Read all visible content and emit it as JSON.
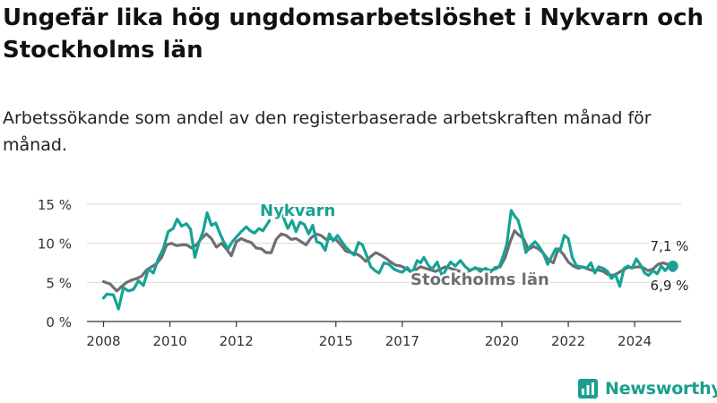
{
  "title": "Ungefär lika hög ungdomsarbetslöshet i Nykvarn och Stockholms län",
  "subtitle": "Arbetssökande som andel av den registerbaserade arbetskraften månad för månad.",
  "logo_text": "Newsworthy",
  "colors": {
    "nykvarn": "#16a394",
    "stockholm": "#6e6e73",
    "grid": "#d8d8d8",
    "axis": "#333333",
    "brand": "#1a9e8f"
  },
  "chart_data": {
    "type": "line",
    "x_unit": "year",
    "xlim": [
      2007.5,
      2025.4
    ],
    "ylim": [
      0,
      15
    ],
    "y_ticks": [
      {
        "value": 0,
        "label": "0 %"
      },
      {
        "value": 5,
        "label": "5 %"
      },
      {
        "value": 10,
        "label": "10 %"
      },
      {
        "value": 15,
        "label": "15 %"
      }
    ],
    "x_ticks": [
      {
        "value": 2008,
        "label": "2008"
      },
      {
        "value": 2010,
        "label": "2010"
      },
      {
        "value": 2012,
        "label": "2012"
      },
      {
        "value": 2015,
        "label": "2015"
      },
      {
        "value": 2017,
        "label": "2017"
      },
      {
        "value": 2020,
        "label": "2020"
      },
      {
        "value": 2022,
        "label": "2022"
      },
      {
        "value": 2024,
        "label": "2024"
      }
    ],
    "grid": true,
    "series": [
      {
        "name": "Nykvarn",
        "end_label": "7,1 %",
        "points": [
          [
            2008.0,
            3.0
          ],
          [
            2008.1,
            3.5
          ],
          [
            2008.3,
            3.4
          ],
          [
            2008.45,
            1.6
          ],
          [
            2008.6,
            4.3
          ],
          [
            2008.75,
            3.9
          ],
          [
            2008.9,
            4.1
          ],
          [
            2009.05,
            5.2
          ],
          [
            2009.2,
            4.6
          ],
          [
            2009.35,
            6.7
          ],
          [
            2009.5,
            6.2
          ],
          [
            2009.65,
            8.0
          ],
          [
            2009.8,
            9.3
          ],
          [
            2009.95,
            11.5
          ],
          [
            2010.1,
            11.9
          ],
          [
            2010.22,
            13.1
          ],
          [
            2010.35,
            12.2
          ],
          [
            2010.5,
            12.5
          ],
          [
            2010.62,
            11.8
          ],
          [
            2010.75,
            8.2
          ],
          [
            2010.88,
            10.2
          ],
          [
            2011.0,
            11.5
          ],
          [
            2011.12,
            13.9
          ],
          [
            2011.25,
            12.3
          ],
          [
            2011.38,
            12.6
          ],
          [
            2011.5,
            11.3
          ],
          [
            2011.62,
            10.2
          ],
          [
            2011.75,
            9.3
          ],
          [
            2011.88,
            10.2
          ],
          [
            2012.0,
            10.8
          ],
          [
            2012.15,
            11.5
          ],
          [
            2012.3,
            12.1
          ],
          [
            2012.42,
            11.6
          ],
          [
            2012.55,
            11.3
          ],
          [
            2012.68,
            11.9
          ],
          [
            2012.8,
            11.6
          ],
          [
            2012.92,
            12.4
          ],
          [
            2013.0,
            12.9
          ]
        ],
        "points_b": [
          [
            2013.3,
            14.5
          ],
          [
            2013.42,
            13.3
          ],
          [
            2013.55,
            11.9
          ],
          [
            2013.68,
            12.9
          ],
          [
            2013.8,
            11.5
          ],
          [
            2013.92,
            12.7
          ],
          [
            2014.05,
            12.4
          ],
          [
            2014.18,
            11.2
          ],
          [
            2014.3,
            12.3
          ],
          [
            2014.42,
            10.2
          ],
          [
            2014.55,
            10.0
          ],
          [
            2014.68,
            9.1
          ],
          [
            2014.8,
            11.2
          ],
          [
            2014.92,
            10.3
          ],
          [
            2015.05,
            11.0
          ],
          [
            2015.18,
            10.2
          ],
          [
            2015.3,
            9.5
          ],
          [
            2015.42,
            9.0
          ],
          [
            2015.55,
            8.5
          ],
          [
            2015.68,
            10.1
          ],
          [
            2015.8,
            9.8
          ],
          [
            2015.92,
            8.5
          ],
          [
            2016.05,
            7.0
          ],
          [
            2016.18,
            6.5
          ],
          [
            2016.3,
            6.2
          ],
          [
            2016.45,
            7.5
          ],
          [
            2016.6,
            7.3
          ],
          [
            2016.75,
            6.7
          ],
          [
            2016.9,
            6.4
          ],
          [
            2017.0,
            6.3
          ],
          [
            2017.15,
            6.9
          ],
          [
            2017.3,
            6.2
          ],
          [
            2017.45,
            7.8
          ],
          [
            2017.55,
            7.5
          ],
          [
            2017.65,
            8.2
          ],
          [
            2017.78,
            7.2
          ],
          [
            2017.9,
            6.7
          ],
          [
            2018.05,
            7.6
          ],
          [
            2018.2,
            5.8
          ],
          [
            2018.3,
            6.5
          ],
          [
            2018.45,
            7.6
          ],
          [
            2018.6,
            7.1
          ],
          [
            2018.75,
            7.8
          ],
          [
            2018.9,
            7.0
          ],
          [
            2019.05,
            6.5
          ],
          [
            2019.2,
            6.9
          ],
          [
            2019.35,
            6.4
          ],
          [
            2019.5,
            6.8
          ],
          [
            2019.65,
            6.5
          ],
          [
            2019.8,
            6.7
          ],
          [
            2019.92,
            7.0
          ],
          [
            2020.05,
            8.5
          ],
          [
            2020.15,
            9.9
          ],
          [
            2020.28,
            14.2
          ],
          [
            2020.38,
            13.5
          ],
          [
            2020.48,
            13.0
          ],
          [
            2020.6,
            11.3
          ],
          [
            2020.72,
            8.8
          ],
          [
            2020.85,
            9.6
          ],
          [
            2021.0,
            10.2
          ],
          [
            2021.12,
            9.6
          ],
          [
            2021.25,
            8.7
          ],
          [
            2021.38,
            7.3
          ],
          [
            2021.5,
            8.3
          ],
          [
            2021.62,
            9.3
          ],
          [
            2021.75,
            9.0
          ],
          [
            2021.88,
            11.0
          ],
          [
            2022.0,
            10.6
          ],
          [
            2022.12,
            8.2
          ],
          [
            2022.25,
            7.1
          ],
          [
            2022.4,
            7.0
          ],
          [
            2022.55,
            6.8
          ],
          [
            2022.68,
            7.5
          ],
          [
            2022.8,
            6.2
          ],
          [
            2022.92,
            7.0
          ],
          [
            2023.05,
            6.8
          ],
          [
            2023.18,
            6.4
          ],
          [
            2023.3,
            5.5
          ],
          [
            2023.42,
            6.0
          ],
          [
            2023.55,
            4.5
          ],
          [
            2023.68,
            6.8
          ],
          [
            2023.8,
            7.1
          ],
          [
            2023.92,
            6.8
          ],
          [
            2024.05,
            8.0
          ],
          [
            2024.18,
            7.2
          ],
          [
            2024.3,
            6.2
          ],
          [
            2024.42,
            5.9
          ],
          [
            2024.55,
            6.5
          ],
          [
            2024.68,
            6.1
          ],
          [
            2024.8,
            7.1
          ],
          [
            2024.92,
            6.5
          ],
          [
            2025.05,
            7.2
          ],
          [
            2025.15,
            7.1
          ]
        ]
      },
      {
        "name": "Stockholms län",
        "end_label": "6,9 %",
        "points": [
          [
            2008.0,
            5.1
          ],
          [
            2008.2,
            4.8
          ],
          [
            2008.4,
            3.9
          ],
          [
            2008.55,
            4.5
          ],
          [
            2008.7,
            5.0
          ],
          [
            2008.85,
            5.3
          ],
          [
            2009.0,
            5.5
          ],
          [
            2009.15,
            5.8
          ],
          [
            2009.3,
            6.6
          ],
          [
            2009.45,
            7.0
          ],
          [
            2009.6,
            7.4
          ],
          [
            2009.75,
            8.2
          ],
          [
            2009.9,
            9.8
          ],
          [
            2010.05,
            10.0
          ],
          [
            2010.2,
            9.7
          ],
          [
            2010.35,
            9.8
          ],
          [
            2010.5,
            9.8
          ],
          [
            2010.65,
            9.4
          ],
          [
            2010.8,
            9.8
          ],
          [
            2010.95,
            10.6
          ],
          [
            2011.1,
            11.2
          ],
          [
            2011.25,
            10.6
          ],
          [
            2011.4,
            9.5
          ],
          [
            2011.55,
            10.0
          ],
          [
            2011.7,
            9.3
          ],
          [
            2011.85,
            8.4
          ],
          [
            2012.0,
            10.2
          ],
          [
            2012.15,
            10.6
          ],
          [
            2012.3,
            10.3
          ],
          [
            2012.45,
            10.1
          ],
          [
            2012.6,
            9.4
          ],
          [
            2012.75,
            9.3
          ],
          [
            2012.9,
            8.8
          ],
          [
            2013.05,
            8.8
          ],
          [
            2013.2,
            10.5
          ],
          [
            2013.35,
            11.2
          ],
          [
            2013.5,
            11.0
          ],
          [
            2013.65,
            10.5
          ],
          [
            2013.8,
            10.6
          ],
          [
            2013.95,
            10.2
          ],
          [
            2014.1,
            9.8
          ],
          [
            2014.25,
            10.7
          ],
          [
            2014.4,
            11.2
          ],
          [
            2014.55,
            11.0
          ],
          [
            2014.7,
            10.5
          ],
          [
            2014.85,
            10.6
          ],
          [
            2015.0,
            10.5
          ],
          [
            2015.15,
            9.8
          ],
          [
            2015.3,
            9.0
          ],
          [
            2015.45,
            8.8
          ],
          [
            2015.6,
            8.7
          ],
          [
            2015.75,
            8.3
          ],
          [
            2015.9,
            7.7
          ],
          [
            2016.05,
            8.3
          ],
          [
            2016.2,
            8.8
          ],
          [
            2016.35,
            8.5
          ],
          [
            2016.5,
            8.1
          ],
          [
            2016.65,
            7.6
          ],
          [
            2016.8,
            7.2
          ],
          [
            2016.95,
            7.1
          ],
          [
            2017.1,
            6.8
          ],
          [
            2017.25,
            6.4
          ],
          [
            2017.4,
            6.6
          ],
          [
            2017.55,
            7.0
          ],
          [
            2017.7,
            6.8
          ],
          [
            2017.85,
            6.6
          ],
          [
            2018.0,
            6.4
          ],
          [
            2018.15,
            6.7
          ],
          [
            2018.3,
            7.0
          ],
          [
            2018.45,
            6.8
          ],
          [
            2018.6,
            6.6
          ],
          [
            2018.75,
            6.4
          ],
          [
            2018.9,
            6.2
          ],
          [
            2019.05,
            6.6
          ],
          [
            2019.2,
            6.8
          ],
          [
            2019.35,
            6.7
          ],
          [
            2019.5,
            6.5
          ],
          [
            2019.65,
            6.3
          ],
          [
            2019.8,
            6.9
          ],
          [
            2019.95,
            7.0
          ],
          [
            2020.1,
            8.2
          ],
          [
            2020.25,
            10.2
          ],
          [
            2020.38,
            11.6
          ],
          [
            2020.5,
            11.1
          ],
          [
            2020.65,
            10.6
          ],
          [
            2020.8,
            9.2
          ],
          [
            2020.95,
            9.6
          ],
          [
            2021.1,
            9.3
          ],
          [
            2021.25,
            8.7
          ],
          [
            2021.4,
            7.9
          ],
          [
            2021.55,
            7.5
          ],
          [
            2021.7,
            9.3
          ],
          [
            2021.85,
            8.6
          ],
          [
            2022.0,
            7.6
          ],
          [
            2022.15,
            7.1
          ],
          [
            2022.3,
            6.8
          ],
          [
            2022.45,
            7.0
          ],
          [
            2022.6,
            6.7
          ],
          [
            2022.75,
            6.5
          ],
          [
            2022.9,
            6.6
          ],
          [
            2023.05,
            6.4
          ],
          [
            2023.2,
            6.0
          ],
          [
            2023.35,
            5.9
          ],
          [
            2023.5,
            6.2
          ],
          [
            2023.65,
            6.6
          ],
          [
            2023.8,
            6.9
          ],
          [
            2023.95,
            6.9
          ],
          [
            2024.1,
            7.0
          ],
          [
            2024.25,
            6.9
          ],
          [
            2024.4,
            6.5
          ],
          [
            2024.55,
            6.7
          ],
          [
            2024.7,
            7.3
          ],
          [
            2024.85,
            7.5
          ],
          [
            2025.0,
            7.3
          ],
          [
            2025.15,
            6.9
          ]
        ]
      }
    ]
  }
}
